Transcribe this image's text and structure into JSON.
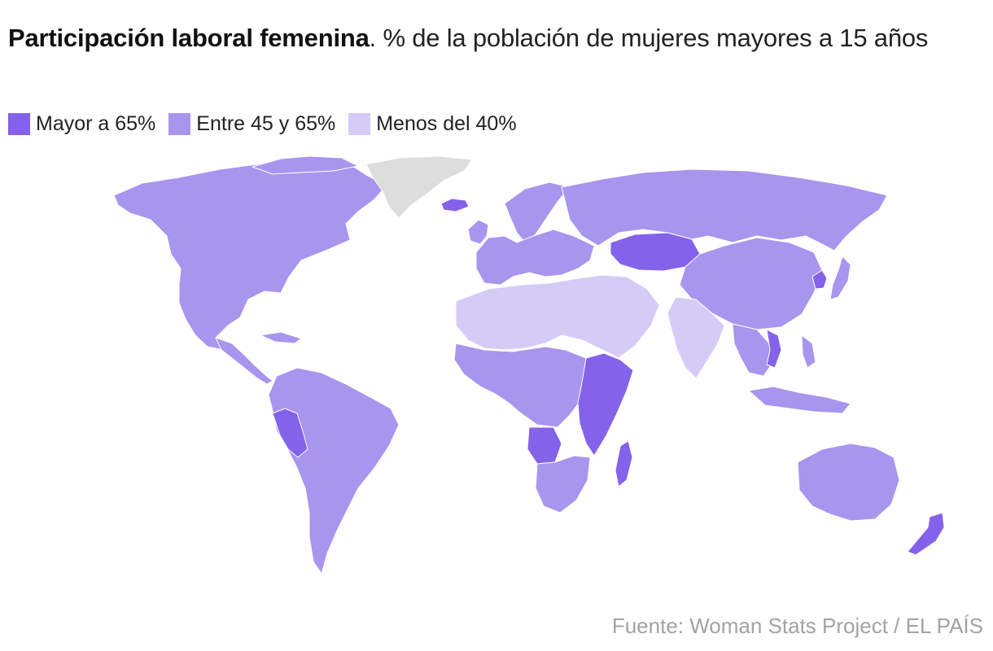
{
  "title": {
    "bold": "Participación laboral femenina",
    "rest": ". % de la población de mujeres mayores a 15 años"
  },
  "legend": {
    "items": [
      {
        "label": "Mayor a 65%",
        "color": "#8462e9"
      },
      {
        "label": "Entre 45 y 65%",
        "color": "#a895ee"
      },
      {
        "label": "Menos del 40%",
        "color": "#d5cbf7"
      }
    ],
    "no_data_color": "#dddddd"
  },
  "map": {
    "regions": [
      {
        "name": "North America",
        "category": "Entre 45 y 65%"
      },
      {
        "name": "Greenland",
        "category": "no data"
      },
      {
        "name": "Iceland",
        "category": "Mayor a 65%"
      },
      {
        "name": "Scandinavia",
        "category": "Entre 45 y 65%"
      },
      {
        "name": "Europe",
        "category": "Entre 45 y 65%"
      },
      {
        "name": "Russia",
        "category": "Entre 45 y 65%"
      },
      {
        "name": "Kazakhstan",
        "category": "Mayor a 65%"
      },
      {
        "name": "China",
        "category": "Entre 45 y 65%"
      },
      {
        "name": "Japan",
        "category": "Entre 45 y 65%"
      },
      {
        "name": "North Korea",
        "category": "Mayor a 65%"
      },
      {
        "name": "Middle East and North Africa",
        "category": "Menos del 40%"
      },
      {
        "name": "India",
        "category": "Menos del 40%"
      },
      {
        "name": "Southeast Asia",
        "category": "Entre 45 y 65%"
      },
      {
        "name": "Vietnam",
        "category": "Mayor a 65%"
      },
      {
        "name": "Central America",
        "category": "Entre 45 y 65%"
      },
      {
        "name": "South America",
        "category": "Entre 45 y 65%"
      },
      {
        "name": "Peru",
        "category": "Mayor a 65%"
      },
      {
        "name": "West and Central Africa",
        "category": "Entre 45 y 65%"
      },
      {
        "name": "East Africa",
        "category": "Mayor a 65%"
      },
      {
        "name": "Angola",
        "category": "Mayor a 65%"
      },
      {
        "name": "Southern Africa",
        "category": "Entre 45 y 65%"
      },
      {
        "name": "Madagascar",
        "category": "Mayor a 65%"
      },
      {
        "name": "Australia",
        "category": "Entre 45 y 65%"
      },
      {
        "name": "New Zealand",
        "category": "Mayor a 65%"
      }
    ]
  },
  "source": "Fuente: Woman Stats Project / EL PAÍS"
}
